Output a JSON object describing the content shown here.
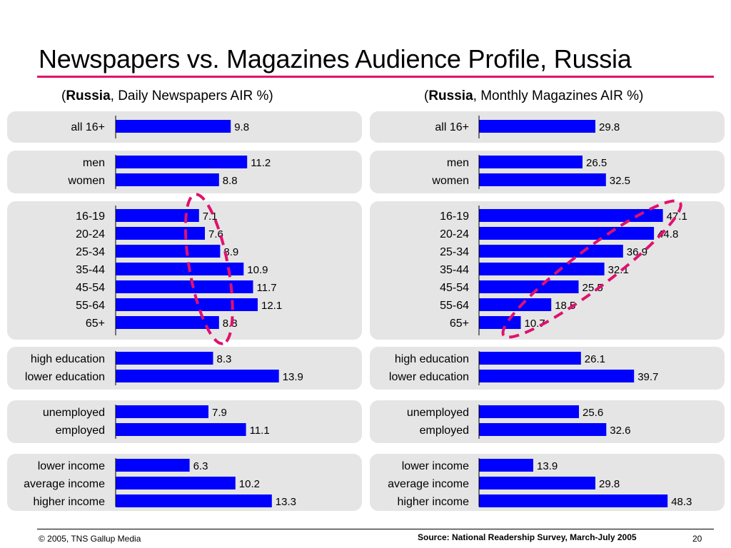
{
  "slide": {
    "title": "Newspapers vs. Magazines Audience Profile, Russia",
    "left_subtitle": {
      "open": "(",
      "bold": "Russia",
      "rest": ", Daily Newspapers AIR %)"
    },
    "right_subtitle": {
      "open": "(",
      "bold": "Russia",
      "rest": ", Monthly Magazines AIR %)"
    }
  },
  "footer": {
    "copyright": "© 2005, TNS Gallup Media",
    "source": "Source: National Readership Survey, March-July 2005",
    "page_number": "20"
  },
  "colors": {
    "bar": "#0000ff",
    "panel": "#e5e5e5",
    "highlight": "#e0116f",
    "axis": "#000000"
  },
  "chart_data": [
    {
      "type": "bar",
      "orientation": "horizontal",
      "categories": [
        "all 16+",
        "men",
        "women",
        "16-19",
        "20-24",
        "25-34",
        "35-44",
        "45-54",
        "55-64",
        "65+",
        "high education",
        "lower education",
        "unemployed",
        "employed",
        "lower income",
        "average income",
        "higher income"
      ],
      "groups": [
        [
          "all 16+"
        ],
        [
          "men",
          "women"
        ],
        [
          "16-19",
          "20-24",
          "25-34",
          "35-44",
          "45-54",
          "55-64",
          "65+"
        ],
        [
          "high education",
          "lower education"
        ],
        [
          "unemployed",
          "employed"
        ],
        [
          "lower income",
          "average income",
          "higher income"
        ]
      ],
      "values": [
        9.8,
        11.2,
        8.8,
        7.1,
        7.6,
        8.9,
        10.9,
        11.7,
        12.1,
        8.8,
        8.3,
        13.9,
        7.9,
        11.1,
        6.3,
        10.2,
        13.3
      ],
      "xlim": [
        0,
        14
      ],
      "highlight": {
        "shape": "dashed-ellipse",
        "categories": [
          "16-19",
          "20-24",
          "25-34",
          "35-44",
          "45-54",
          "55-64",
          "65+"
        ]
      }
    },
    {
      "type": "bar",
      "orientation": "horizontal",
      "categories": [
        "all 16+",
        "men",
        "women",
        "16-19",
        "20-24",
        "25-34",
        "35-44",
        "45-54",
        "55-64",
        "65+",
        "high education",
        "lower education",
        "unemployed",
        "employed",
        "lower income",
        "average income",
        "higher income"
      ],
      "groups": [
        [
          "all 16+"
        ],
        [
          "men",
          "women"
        ],
        [
          "16-19",
          "20-24",
          "25-34",
          "35-44",
          "45-54",
          "55-64",
          "65+"
        ],
        [
          "high education",
          "lower education"
        ],
        [
          "unemployed",
          "employed"
        ],
        [
          "lower income",
          "average income",
          "higher income"
        ]
      ],
      "values": [
        29.8,
        26.5,
        32.5,
        47.1,
        44.8,
        36.9,
        32.1,
        25.5,
        18.5,
        10.7,
        26.1,
        39.7,
        25.6,
        32.6,
        13.9,
        29.8,
        48.3
      ],
      "xlim": [
        0,
        50
      ],
      "highlight": {
        "shape": "dashed-ellipse",
        "categories": [
          "16-19",
          "20-24",
          "25-34",
          "35-44",
          "45-54",
          "55-64",
          "65+"
        ]
      }
    }
  ]
}
